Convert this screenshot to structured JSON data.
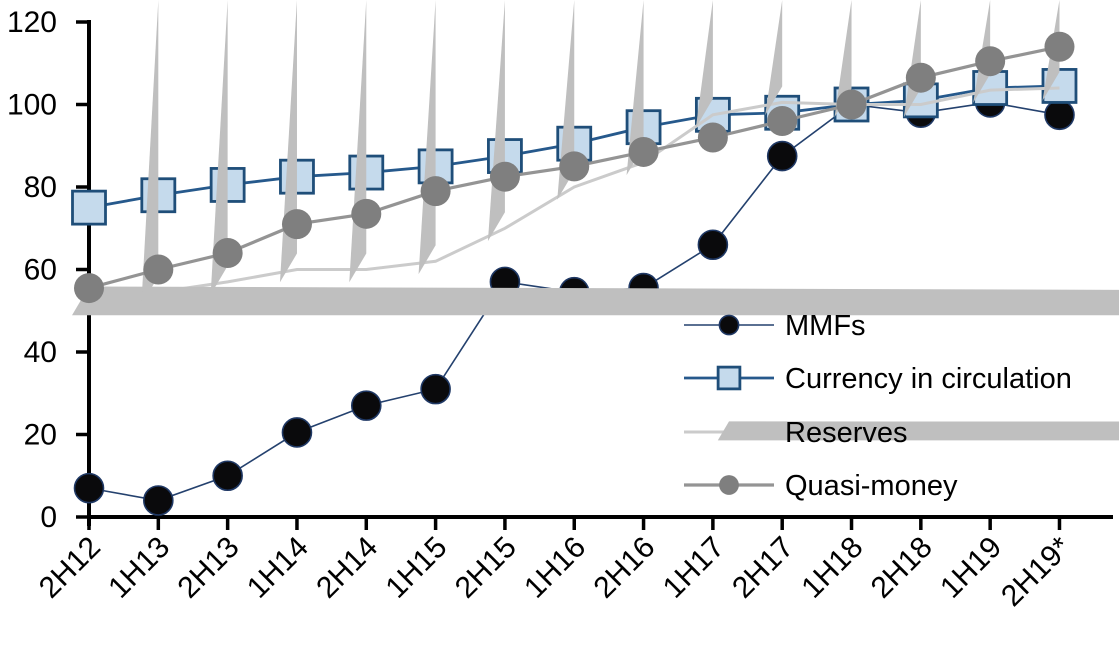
{
  "chart_data": {
    "type": "line",
    "title": "",
    "xlabel": "",
    "ylabel": "",
    "ylim": [
      0,
      120
    ],
    "yticks": [
      0,
      20,
      40,
      60,
      80,
      100,
      120
    ],
    "grid": false,
    "legend_position": "inside-right-middle",
    "categories": [
      "2H12",
      "1H13",
      "2H13",
      "1H14",
      "2H14",
      "1H15",
      "2H15",
      "1H16",
      "2H16",
      "1H17",
      "2H17",
      "1H18",
      "2H18",
      "1H19",
      "2H19*"
    ],
    "series": [
      {
        "name": "MMFs",
        "marker": "circle",
        "marker_fill": "#0a0a0c",
        "marker_stroke": "#1f3864",
        "marker_size": 29,
        "line_color": "#24416e",
        "line_width": 1.6,
        "values": [
          7,
          4,
          10,
          20.5,
          27,
          31,
          57,
          54.5,
          55.5,
          66,
          87.5,
          100,
          98,
          100.5,
          97.5
        ]
      },
      {
        "name": "Currency in circulation",
        "marker": "square",
        "marker_fill": "#c5daec",
        "marker_stroke": "#1f4e79",
        "marker_size": 33,
        "line_color": "#26598c",
        "line_width": 2.8,
        "values": [
          75,
          78,
          80.5,
          82.5,
          83.5,
          85,
          87.5,
          90.5,
          94.5,
          97.5,
          98,
          100,
          101,
          104,
          104.5
        ]
      },
      {
        "name": "Reserves",
        "marker": "triangle",
        "marker_fill": "#bfbfbf",
        "marker_stroke": "none",
        "marker_size": 32,
        "line_color": "#cbcbcb",
        "line_width": 3,
        "values": [
          52,
          54.5,
          57,
          60,
          60,
          62,
          70,
          80,
          86,
          97.5,
          100.5,
          100,
          100,
          103.5,
          104
        ]
      },
      {
        "name": "Quasi-money",
        "marker": "circle",
        "marker_fill": "#7f7f7f",
        "marker_stroke": "none",
        "marker_size": 30,
        "line_color": "#949494",
        "line_width": 3.2,
        "values": [
          55.5,
          60,
          64,
          71,
          73.5,
          79,
          82.5,
          85,
          88.5,
          92,
          96,
          100,
          106.5,
          110.5,
          114
        ]
      }
    ],
    "axis_color": "#000000",
    "text_color": "#000000"
  }
}
